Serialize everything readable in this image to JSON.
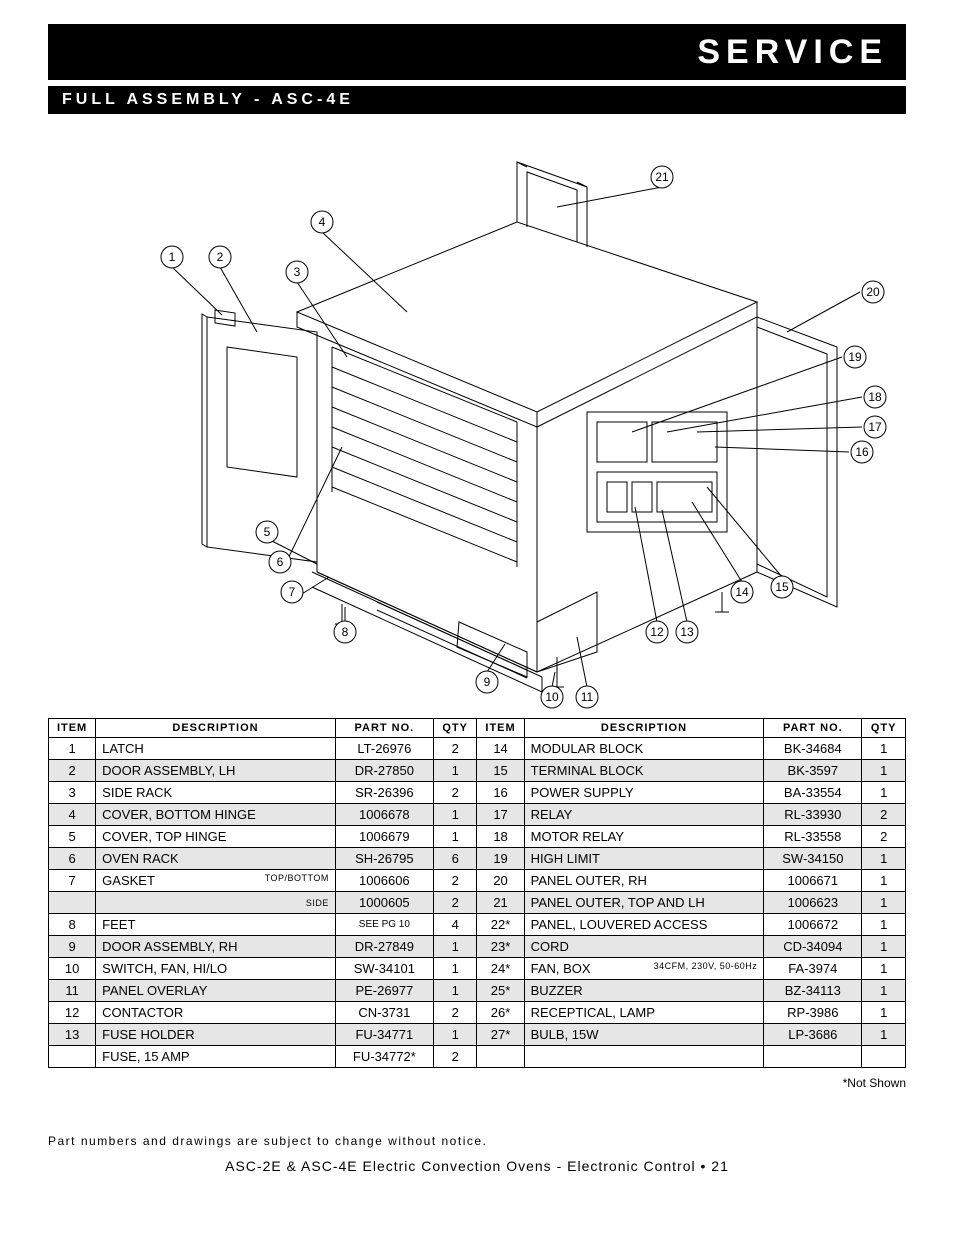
{
  "header": {
    "title": "SERVICE",
    "subtitle": "FULL ASSEMBLY - ASC-4E"
  },
  "diagram": {
    "callouts": [
      "1",
      "2",
      "3",
      "4",
      "5",
      "6",
      "7",
      "8",
      "9",
      "10",
      "11",
      "12",
      "13",
      "14",
      "15",
      "16",
      "17",
      "18",
      "19",
      "20",
      "21"
    ],
    "line_color": "#000000",
    "line_width": 1,
    "callout_radius": 11,
    "callout_font_size": 12
  },
  "table": {
    "headers": [
      "ITEM",
      "DESCRIPTION",
      "PART NO.",
      "QTY",
      "ITEM",
      "DESCRIPTION",
      "PART NO.",
      "QTY"
    ],
    "header_bg": "#ffffff",
    "shade_bg": "#e6e6e6",
    "border_color": "#000000",
    "font_size": 13,
    "rows": [
      {
        "shade": false,
        "l": {
          "item": "1",
          "desc": "LATCH",
          "sub": "",
          "part": "LT-26976",
          "qty": "2"
        },
        "r": {
          "item": "14",
          "desc": "MODULAR BLOCK",
          "sub": "",
          "part": "BK-34684",
          "qty": "1"
        }
      },
      {
        "shade": true,
        "l": {
          "item": "2",
          "desc": "DOOR ASSEMBLY, LH",
          "sub": "",
          "part": "DR-27850",
          "qty": "1"
        },
        "r": {
          "item": "15",
          "desc": "TERMINAL BLOCK",
          "sub": "",
          "part": "BK-3597",
          "qty": "1"
        }
      },
      {
        "shade": false,
        "l": {
          "item": "3",
          "desc": "SIDE RACK",
          "sub": "",
          "part": "SR-26396",
          "qty": "2"
        },
        "r": {
          "item": "16",
          "desc": "POWER SUPPLY",
          "sub": "",
          "part": "BA-33554",
          "qty": "1"
        }
      },
      {
        "shade": true,
        "l": {
          "item": "4",
          "desc": "COVER, BOTTOM HINGE",
          "sub": "",
          "part": "1006678",
          "qty": "1"
        },
        "r": {
          "item": "17",
          "desc": "RELAY",
          "sub": "",
          "part": "RL-33930",
          "qty": "2"
        }
      },
      {
        "shade": false,
        "l": {
          "item": "5",
          "desc": "COVER, TOP HINGE",
          "sub": "",
          "part": "1006679",
          "qty": "1"
        },
        "r": {
          "item": "18",
          "desc": "MOTOR RELAY",
          "sub": "",
          "part": "RL-33558",
          "qty": "2"
        }
      },
      {
        "shade": true,
        "l": {
          "item": "6",
          "desc": "OVEN RACK",
          "sub": "",
          "part": "SH-26795",
          "qty": "6"
        },
        "r": {
          "item": "19",
          "desc": "HIGH LIMIT",
          "sub": "",
          "part": "SW-34150",
          "qty": "1"
        }
      },
      {
        "shade": false,
        "l": {
          "item": "7",
          "desc": "GASKET",
          "sub": "TOP/BOTTOM",
          "part": "1006606",
          "qty": "2"
        },
        "r": {
          "item": "20",
          "desc": "PANEL OUTER, RH",
          "sub": "",
          "part": "1006671",
          "qty": "1"
        }
      },
      {
        "shade": true,
        "l": {
          "item": "",
          "desc": "",
          "sub": "SIDE",
          "part": "1000605",
          "qty": "2"
        },
        "r": {
          "item": "21",
          "desc": "PANEL OUTER, TOP AND LH",
          "sub": "",
          "part": "1006623",
          "qty": "1"
        }
      },
      {
        "shade": false,
        "l": {
          "item": "8",
          "desc": "FEET",
          "sub": "",
          "part": "SEE PG 10",
          "part_small": true,
          "qty": "4"
        },
        "r": {
          "item": "22*",
          "desc": "PANEL, LOUVERED ACCESS",
          "sub": "",
          "part": "1006672",
          "qty": "1"
        }
      },
      {
        "shade": true,
        "l": {
          "item": "9",
          "desc": "DOOR ASSEMBLY, RH",
          "sub": "",
          "part": "DR-27849",
          "qty": "1"
        },
        "r": {
          "item": "23*",
          "desc": "CORD",
          "sub": "",
          "part": "CD-34094",
          "qty": "1"
        }
      },
      {
        "shade": false,
        "l": {
          "item": "10",
          "desc": "SWITCH, FAN, HI/LO",
          "sub": "",
          "part": "SW-34101",
          "qty": "1"
        },
        "r": {
          "item": "24*",
          "desc": "FAN, BOX",
          "sub": "34CFM, 230V, 50-60Hz",
          "part": "FA-3974",
          "qty": "1"
        }
      },
      {
        "shade": true,
        "l": {
          "item": "11",
          "desc": "PANEL OVERLAY",
          "sub": "",
          "part": "PE-26977",
          "qty": "1"
        },
        "r": {
          "item": "25*",
          "desc": "BUZZER",
          "sub": "",
          "part": "BZ-34113",
          "qty": "1"
        }
      },
      {
        "shade": false,
        "l": {
          "item": "12",
          "desc": "CONTACTOR",
          "sub": "",
          "part": "CN-3731",
          "qty": "2"
        },
        "r": {
          "item": "26*",
          "desc": "RECEPTICAL, LAMP",
          "sub": "",
          "part": "RP-3986",
          "qty": "1"
        }
      },
      {
        "shade": true,
        "l": {
          "item": "13",
          "desc": "FUSE HOLDER",
          "sub": "",
          "part": "FU-34771",
          "qty": "1"
        },
        "r": {
          "item": "27*",
          "desc": "BULB, 15W",
          "sub": "",
          "part": "LP-3686",
          "qty": "1"
        }
      },
      {
        "shade": false,
        "l": {
          "item": "",
          "desc": "FUSE, 15 AMP",
          "sub": "",
          "part": "FU-34772*",
          "qty": "2"
        },
        "r": {
          "item": "",
          "desc": "",
          "sub": "",
          "part": "",
          "qty": ""
        }
      }
    ]
  },
  "footnote": "*Not Shown",
  "disclaimer": "Part numbers and drawings are subject to change without notice.",
  "footer": "ASC-2E & ASC-4E Electric Convection Ovens - Electronic Control • 21"
}
